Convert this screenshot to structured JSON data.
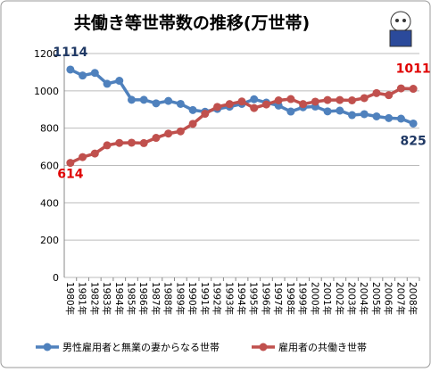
{
  "chart_data": {
    "type": "line",
    "title": "共働き等世帯数の推移(万世帯)",
    "categories": [
      "1980年",
      "1981年",
      "1982年",
      "1983年",
      "1984年",
      "1985年",
      "1986年",
      "1987年",
      "1988年",
      "1989年",
      "1990年",
      "1991年",
      "1992年",
      "1993年",
      "1994年",
      "1995年",
      "1996年",
      "1997年",
      "1998年",
      "1999年",
      "2000年",
      "2001年",
      "2002年",
      "2003年",
      "2004年",
      "2005年",
      "2006年",
      "2007年",
      "2008年"
    ],
    "series": [
      {
        "name": "男性雇用者と無業の妻からなる世帯",
        "color": "#4f81bd",
        "values": [
          1114,
          1082,
          1096,
          1038,
          1054,
          952,
          952,
          933,
          946,
          930,
          897,
          888,
          903,
          915,
          930,
          955,
          937,
          921,
          889,
          912,
          916,
          890,
          894,
          870,
          875,
          863,
          854,
          851,
          825
        ]
      },
      {
        "name": "雇用者の共働き世帯",
        "color": "#c0504d",
        "values": [
          614,
          645,
          664,
          708,
          721,
          722,
          720,
          748,
          771,
          783,
          823,
          877,
          914,
          929,
          943,
          908,
          927,
          949,
          956,
          929,
          942,
          951,
          951,
          949,
          961,
          988,
          977,
          1013,
          1011
        ]
      }
    ],
    "ylim": [
      0,
      1200
    ],
    "yticks": [
      0,
      200,
      400,
      600,
      800,
      1000,
      1200
    ],
    "grid": true
  }
}
